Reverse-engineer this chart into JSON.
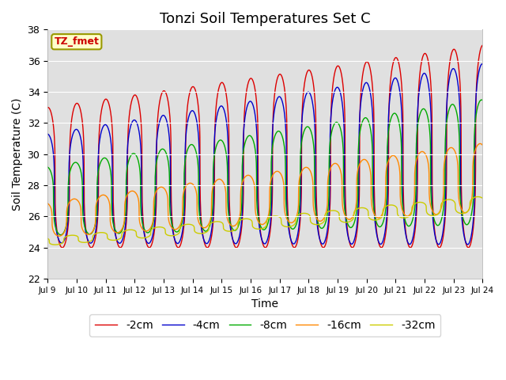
{
  "title": "Tonzi Soil Temperatures Set C",
  "xlabel": "Time",
  "ylabel": "Soil Temperature (C)",
  "ylim": [
    22,
    38
  ],
  "annotation": "TZ_fmet",
  "colors": {
    "-2cm": "#dd0000",
    "-4cm": "#0000cc",
    "-8cm": "#00aa00",
    "-16cm": "#ff8800",
    "-32cm": "#cccc00"
  },
  "legend_labels": [
    "-2cm",
    "-4cm",
    "-8cm",
    "-16cm",
    "-32cm"
  ],
  "xtick_labels": [
    "Jul 9",
    "Jul 10",
    "Jul 11",
    "Jul 12",
    "Jul 13",
    "Jul 14",
    "Jul 15",
    "Jul 16",
    "Jul 17",
    "Jul 18",
    "Jul 19",
    "Jul 20",
    "Jul 21",
    "Jul 22",
    "Jul 23",
    "Jul 24"
  ],
  "bg_color": "#e0e0e0",
  "title_fontsize": 13,
  "axis_fontsize": 10,
  "legend_fontsize": 10,
  "grid_color": "#ffffff"
}
